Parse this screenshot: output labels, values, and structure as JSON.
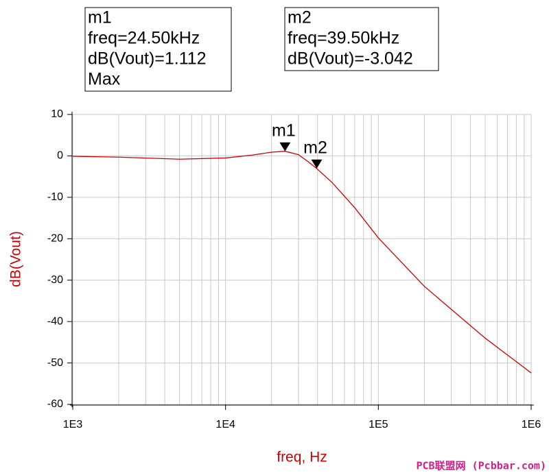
{
  "chart_data": {
    "type": "line",
    "xlabel": "freq, Hz",
    "ylabel": "dB(Vout)",
    "xscale": "log",
    "xlim": [
      1000,
      1000000
    ],
    "ylim": [
      -60,
      10
    ],
    "xticks": [
      {
        "value": 1000,
        "label": "1E3"
      },
      {
        "value": 10000,
        "label": "1E4"
      },
      {
        "value": 100000,
        "label": "1E5"
      },
      {
        "value": 1000000,
        "label": "1E6"
      }
    ],
    "x_minor_ticks": [
      2000,
      3000,
      4000,
      5000,
      6000,
      7000,
      8000,
      9000,
      20000,
      30000,
      40000,
      50000,
      60000,
      70000,
      80000,
      90000,
      200000,
      300000,
      400000,
      500000,
      600000,
      700000,
      800000,
      900000
    ],
    "yticks": [
      -60,
      -50,
      -40,
      -30,
      -20,
      -10,
      0,
      10
    ],
    "grid": true,
    "series": [
      {
        "name": "dB(Vout)",
        "color": "#cc0000",
        "x": [
          1000,
          2000,
          5000,
          10000,
          15000,
          20000,
          24500,
          30000,
          35000,
          39500,
          50000,
          70000,
          100000,
          200000,
          500000,
          1000000
        ],
        "values": [
          -0.1,
          -0.3,
          -0.8,
          -0.5,
          0.2,
          0.9,
          1.112,
          0.3,
          -1.5,
          -3.042,
          -6.5,
          -12.5,
          -19.8,
          -31.5,
          -44,
          -52.4
        ]
      }
    ],
    "markers": [
      {
        "name": "m1",
        "x": 24500,
        "y": 1.112,
        "lines": [
          "freq=24.50kHz",
          "dB(Vout)=1.112",
          "Max"
        ]
      },
      {
        "name": "m2",
        "x": 39500,
        "y": -3.042,
        "lines": [
          "freq=39.50kHz",
          "dB(Vout)=-3.042"
        ]
      }
    ],
    "watermark": "PCB联盟网 (Pcbbar.com)"
  }
}
